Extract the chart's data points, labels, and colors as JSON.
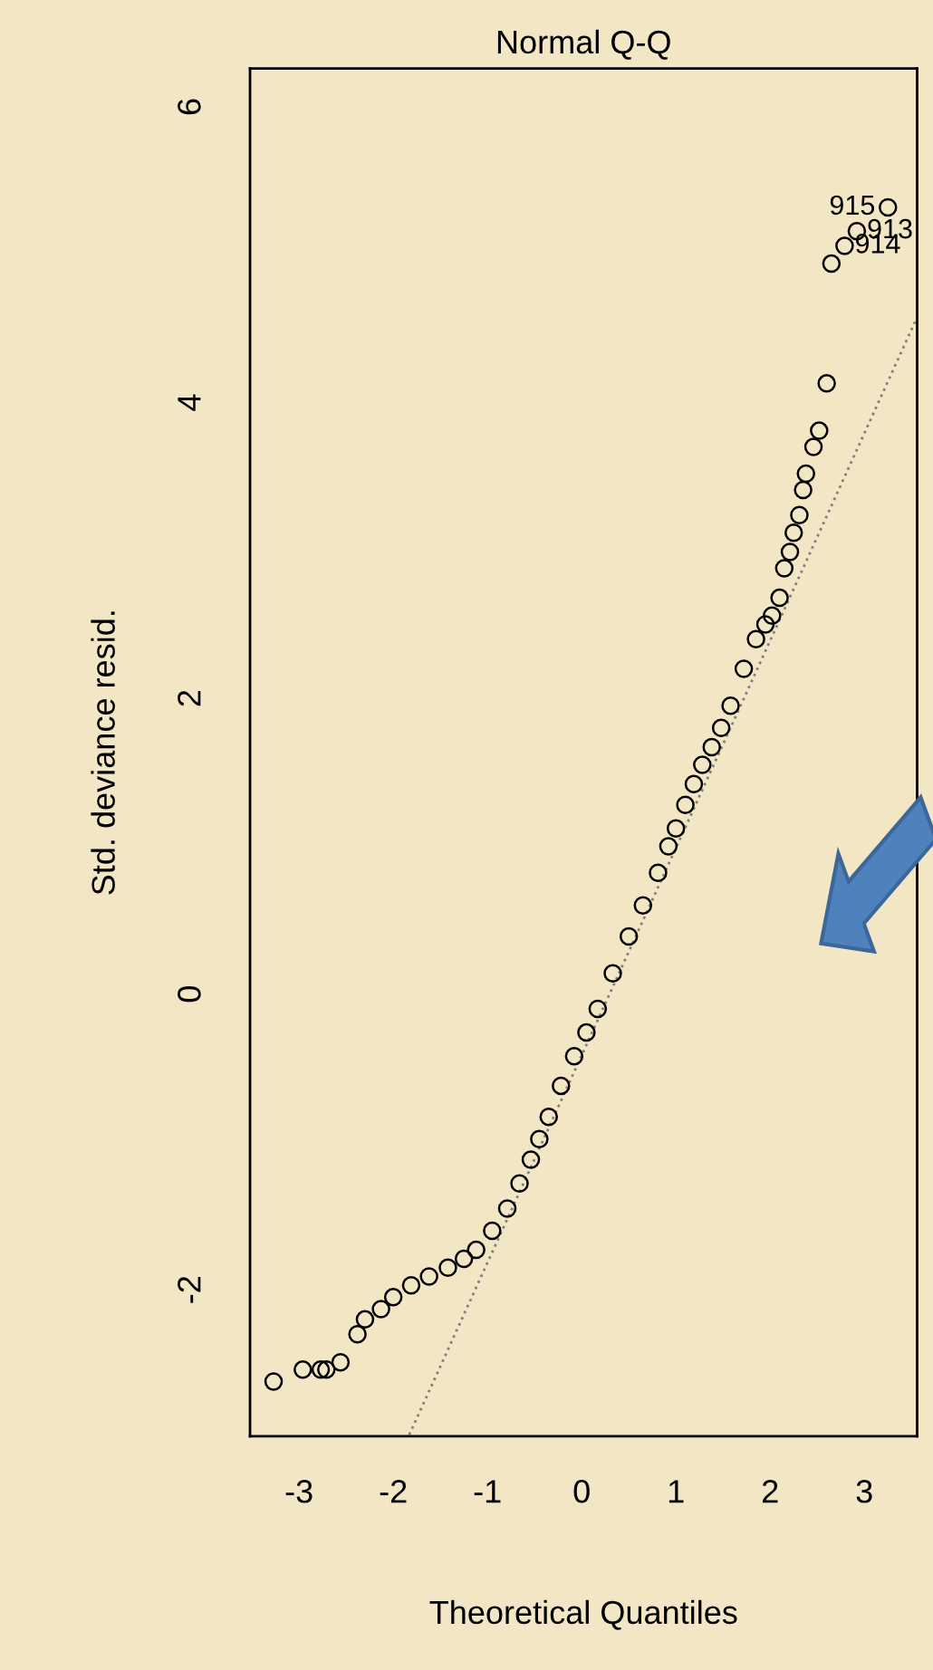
{
  "chart_data": {
    "type": "scatter",
    "title": "Normal Q-Q",
    "xlabel": "Theoretical Quantiles",
    "ylabel": "Std. deviance resid.",
    "xlim": [
      -3.52,
      3.56
    ],
    "ylim": [
      -2.99,
      6.26
    ],
    "xticks": [
      -3,
      -2,
      -1,
      0,
      1,
      2,
      3
    ],
    "yticks": [
      -2,
      0,
      2,
      4,
      6
    ],
    "grid": false,
    "series": [
      {
        "marker": "circle",
        "color": "#000000",
        "x": [
          -3.27,
          -2.96,
          -2.77,
          -2.71,
          -2.56,
          -2.38,
          -2.3,
          -2.13,
          -2.0,
          -1.81,
          -1.62,
          -1.42,
          -1.25,
          -1.12,
          -0.95,
          -0.79,
          -0.66,
          -0.54,
          -0.45,
          -0.35,
          -0.22,
          -0.08,
          0.05,
          0.17,
          0.33,
          0.5,
          0.65,
          0.81,
          0.92,
          1.0,
          1.1,
          1.19,
          1.28,
          1.38,
          1.48,
          1.58,
          1.72,
          1.85,
          1.95,
          2.02,
          2.1,
          2.15,
          2.21,
          2.25,
          2.31,
          2.35,
          2.38,
          2.46,
          2.52,
          2.6,
          2.65,
          2.79,
          2.92,
          3.25
        ],
        "values": [
          -2.62,
          -2.54,
          -2.54,
          -2.54,
          -2.49,
          -2.3,
          -2.2,
          -2.13,
          -2.05,
          -1.97,
          -1.91,
          -1.85,
          -1.79,
          -1.73,
          -1.6,
          -1.45,
          -1.28,
          -1.12,
          -0.98,
          -0.83,
          -0.62,
          -0.42,
          -0.26,
          -0.1,
          0.14,
          0.39,
          0.6,
          0.82,
          1.0,
          1.12,
          1.28,
          1.42,
          1.55,
          1.67,
          1.8,
          1.95,
          2.2,
          2.4,
          2.5,
          2.56,
          2.68,
          2.88,
          2.99,
          3.12,
          3.24,
          3.41,
          3.52,
          3.7,
          3.81,
          4.13,
          4.94,
          5.06,
          5.16,
          5.32
        ]
      },
      {
        "type": "line",
        "color": "#808080",
        "line_style": "dotted",
        "x": [
          -1.83,
          3.54
        ],
        "values": [
          -2.98,
          4.55
        ]
      }
    ],
    "annotations": [
      {
        "text": "915",
        "x": 3.25,
        "y": 5.32
      },
      {
        "text": "913",
        "x": 2.92,
        "y": 5.16
      },
      {
        "text": "914",
        "x": 2.79,
        "y": 5.06
      }
    ]
  }
}
